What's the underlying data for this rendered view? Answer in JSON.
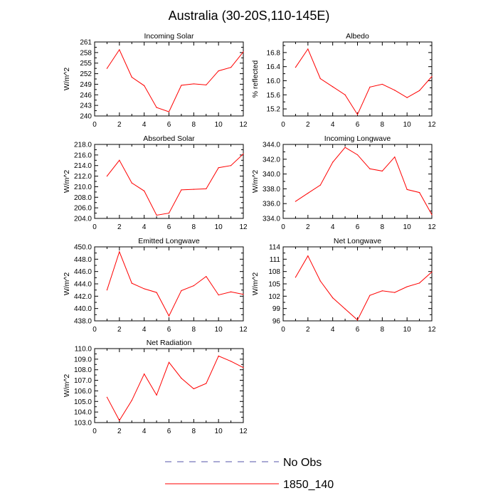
{
  "figure": {
    "title": "Australia (30-20S,110-145E)"
  },
  "legend": {
    "entries": [
      {
        "label": "No Obs",
        "color": "#5555aa",
        "style": "dashed"
      },
      {
        "label": "1850_140",
        "color": "#ff0000",
        "style": "solid"
      }
    ]
  },
  "colors": {
    "series": "#ff0000",
    "axis": "#000000"
  },
  "chart_data": [
    {
      "type": "line",
      "title": "Incoming Solar",
      "ylabel": "W/m^2",
      "xlim": [
        0,
        12
      ],
      "ylim": [
        240,
        261
      ],
      "x_ticks": [
        "0",
        "2",
        "4",
        "6",
        "8",
        "10",
        "12"
      ],
      "y_ticks": [
        "240",
        "243",
        "246",
        "249",
        "252",
        "255",
        "258",
        "261"
      ],
      "series": [
        {
          "name": "1850_140",
          "x": [
            1,
            2,
            3,
            4,
            5,
            6,
            7,
            8,
            9,
            10,
            11,
            12
          ],
          "values": [
            253.5,
            258.8,
            251.0,
            248.6,
            242.4,
            241.2,
            248.7,
            249.1,
            248.8,
            252.8,
            253.8,
            258.2
          ]
        }
      ]
    },
    {
      "type": "line",
      "title": "Albedo",
      "ylabel": "% reflected",
      "xlim": [
        0,
        12
      ],
      "ylim": [
        15.0,
        17.1
      ],
      "x_ticks": [
        "0",
        "2",
        "4",
        "6",
        "8",
        "10",
        "12"
      ],
      "y_ticks": [
        "15.2",
        "15.6",
        "16.0",
        "16.4",
        "16.8"
      ],
      "series": [
        {
          "name": "1850_140",
          "x": [
            1,
            2,
            3,
            4,
            5,
            6,
            7,
            8,
            9,
            10,
            11,
            12
          ],
          "values": [
            16.38,
            16.9,
            16.06,
            15.83,
            15.6,
            15.04,
            15.82,
            15.9,
            15.73,
            15.52,
            15.72,
            16.12
          ]
        }
      ]
    },
    {
      "type": "line",
      "title": "Absorbed Solar",
      "ylabel": "W/m^2",
      "xlim": [
        0,
        12
      ],
      "ylim": [
        204,
        218
      ],
      "x_ticks": [
        "0",
        "2",
        "4",
        "6",
        "8",
        "10",
        "12"
      ],
      "y_ticks": [
        "204.0",
        "206.0",
        "208.0",
        "210.0",
        "212.0",
        "214.0",
        "216.0",
        "218.0"
      ],
      "series": [
        {
          "name": "1850_140",
          "x": [
            1,
            2,
            3,
            4,
            5,
            6,
            7,
            8,
            9,
            10,
            11,
            12
          ],
          "values": [
            212.0,
            215.0,
            210.7,
            209.2,
            204.6,
            205.0,
            209.4,
            209.5,
            209.6,
            213.6,
            214.0,
            216.2
          ]
        }
      ]
    },
    {
      "type": "line",
      "title": "Incoming Longwave",
      "ylabel": "W/m^2",
      "xlim": [
        0,
        12
      ],
      "ylim": [
        334,
        344
      ],
      "x_ticks": [
        "0",
        "2",
        "4",
        "6",
        "8",
        "10",
        "12"
      ],
      "y_ticks": [
        "334.0",
        "336.0",
        "338.0",
        "340.0",
        "342.0",
        "344.0"
      ],
      "series": [
        {
          "name": "1850_140",
          "x": [
            1,
            2,
            3,
            4,
            5,
            6,
            7,
            8,
            9,
            10,
            11,
            12
          ],
          "values": [
            336.3,
            337.4,
            338.5,
            341.6,
            343.6,
            342.6,
            340.7,
            340.4,
            342.3,
            337.9,
            337.5,
            334.5
          ]
        }
      ]
    },
    {
      "type": "line",
      "title": "Emitted Longwave",
      "ylabel": "W/m^2",
      "xlim": [
        0,
        12
      ],
      "ylim": [
        438,
        450
      ],
      "x_ticks": [
        "0",
        "2",
        "4",
        "6",
        "8",
        "10",
        "12"
      ],
      "y_ticks": [
        "438.0",
        "440.0",
        "442.0",
        "444.0",
        "446.0",
        "448.0",
        "450.0"
      ],
      "series": [
        {
          "name": "1850_140",
          "x": [
            1,
            2,
            3,
            4,
            5,
            6,
            7,
            8,
            9,
            10,
            11,
            12
          ],
          "values": [
            443.0,
            449.2,
            444.1,
            443.2,
            442.6,
            438.8,
            442.9,
            443.7,
            445.2,
            442.2,
            442.7,
            442.3
          ]
        }
      ]
    },
    {
      "type": "line",
      "title": "Net Longwave",
      "ylabel": "W/m^2",
      "xlim": [
        0,
        12
      ],
      "ylim": [
        96,
        114
      ],
      "x_ticks": [
        "0",
        "2",
        "4",
        "6",
        "8",
        "10",
        "12"
      ],
      "y_ticks": [
        "96",
        "99",
        "102",
        "105",
        "108",
        "111",
        "114"
      ],
      "series": [
        {
          "name": "1850_140",
          "x": [
            1,
            2,
            3,
            4,
            5,
            6,
            7,
            8,
            9,
            10,
            11,
            12
          ],
          "values": [
            106.6,
            111.8,
            105.7,
            101.6,
            98.9,
            96.2,
            102.2,
            103.3,
            102.9,
            104.3,
            105.2,
            107.9
          ]
        }
      ]
    },
    {
      "type": "line",
      "title": "Net Radiation",
      "ylabel": "W/m^2",
      "xlim": [
        0,
        12
      ],
      "ylim": [
        103,
        110
      ],
      "x_ticks": [
        "0",
        "2",
        "4",
        "6",
        "8",
        "10",
        "12"
      ],
      "y_ticks": [
        "103.0",
        "104.0",
        "105.0",
        "106.0",
        "107.0",
        "108.0",
        "109.0",
        "110.0"
      ],
      "series": [
        {
          "name": "1850_140",
          "x": [
            1,
            2,
            3,
            4,
            5,
            6,
            7,
            8,
            9,
            10,
            11,
            12
          ],
          "values": [
            105.4,
            103.2,
            105.1,
            107.6,
            105.6,
            108.7,
            107.2,
            106.2,
            106.7,
            109.3,
            108.8,
            108.2
          ]
        }
      ]
    }
  ]
}
